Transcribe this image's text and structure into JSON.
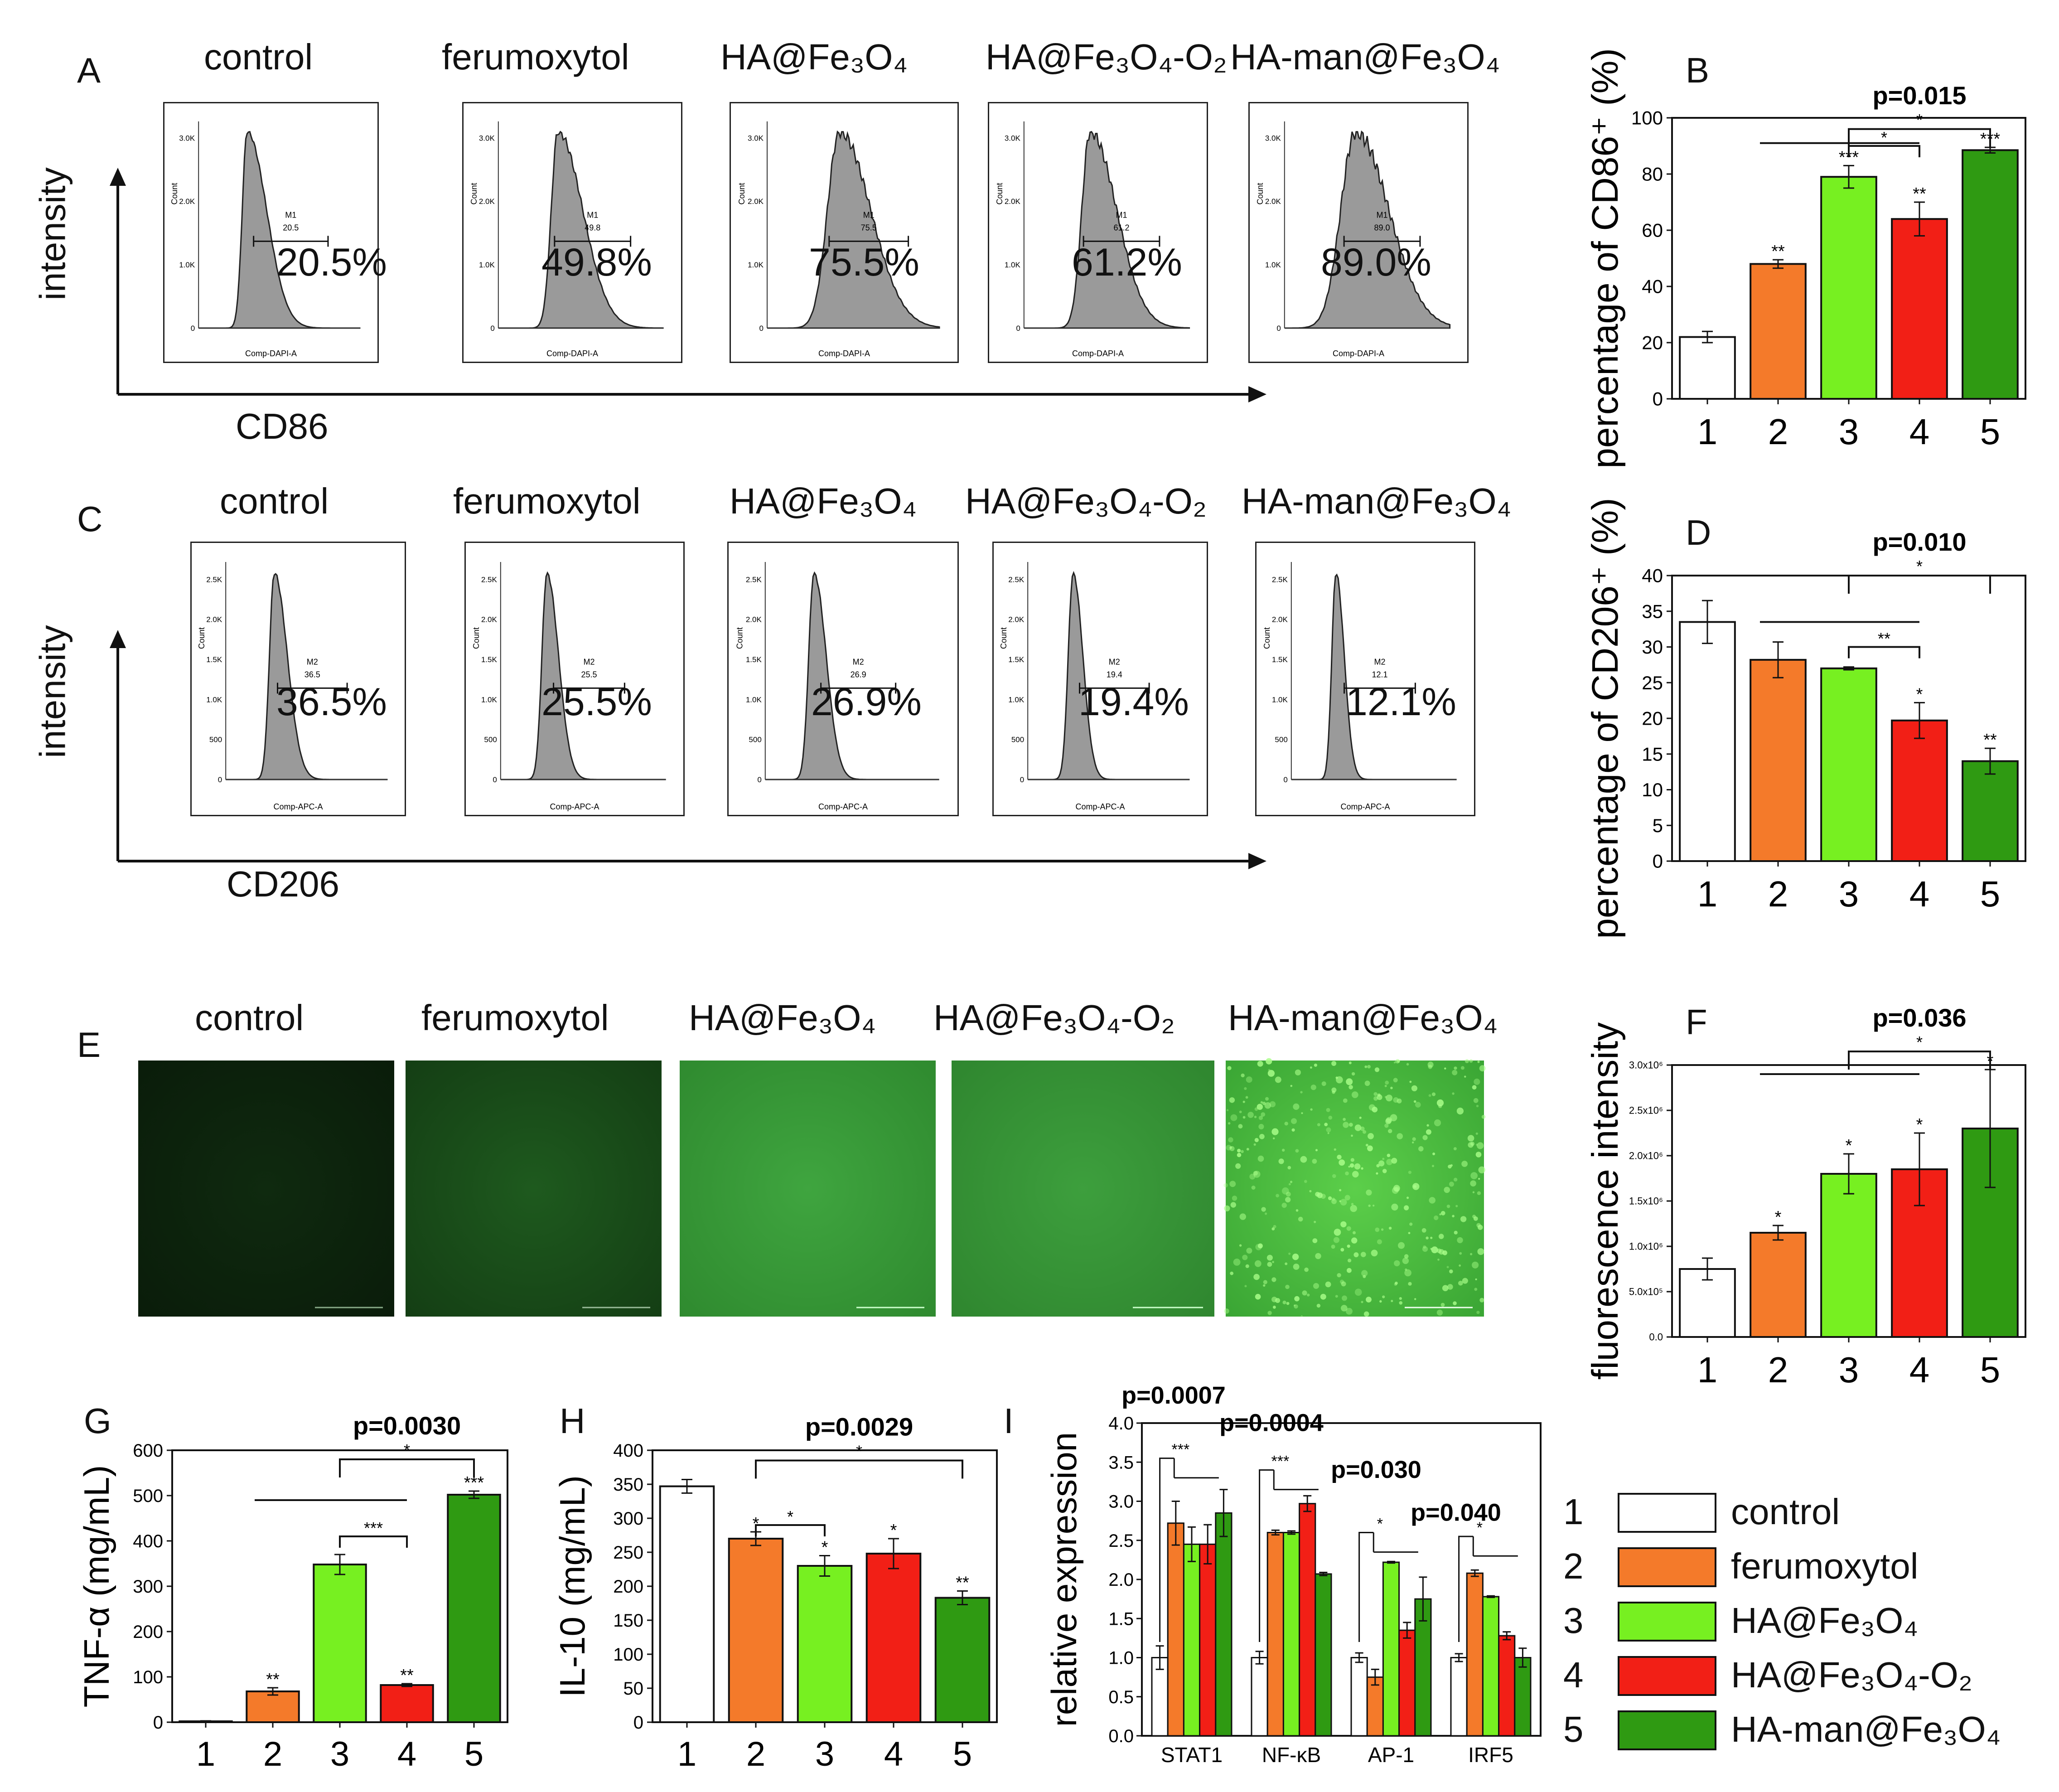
{
  "colors": [
    "#ffffff",
    "#f47a2a",
    "#77f021",
    "#f21f16",
    "#2f9a12"
  ],
  "panel_letters": {
    "A": "A",
    "B": "B",
    "C": "C",
    "D": "D",
    "E": "E",
    "F": "F",
    "G": "G",
    "H": "H",
    "I": "I"
  },
  "conditions": [
    "control",
    "ferumoxytol",
    "HA@Fe₃O₄",
    "HA@Fe₃O₄-O₂",
    "HA-man@Fe₃O₄"
  ],
  "legend": [
    {
      "num": "1",
      "label": "control"
    },
    {
      "num": "2",
      "label": "ferumoxytol"
    },
    {
      "num": "3",
      "label": "HA@Fe₃O₄"
    },
    {
      "num": "4",
      "label": "HA@Fe₃O₄-O₂"
    },
    {
      "num": "5",
      "label": "HA-man@Fe₃O₄"
    }
  ],
  "flow": {
    "cd86": {
      "intensity_label": "intensity",
      "marker_label": "CD86",
      "gate": "M1",
      "axis_caption": "Comp-DAPI-A",
      "percents": [
        "20.5%",
        "49.8%",
        "75.5%",
        "61.2%",
        "89.0%"
      ],
      "gate_values": [
        "20.5",
        "49.8",
        "75.5",
        "61.2",
        "89.0"
      ],
      "y_ticks": [
        "3.0K",
        "2.0K",
        "1.0K",
        "0"
      ],
      "y_caption": "Count"
    },
    "cd206": {
      "intensity_label": "intensity",
      "marker_label": "CD206",
      "gate": "M2",
      "axis_caption": "Comp-APC-A",
      "percents": [
        "36.5%",
        "25.5%",
        "26.9%",
        "19.4%",
        "12.1%"
      ],
      "gate_values": [
        "36.5",
        "25.5",
        "26.9",
        "19.4",
        "12.1"
      ],
      "y_ticks": [
        "2.5K",
        "2.0K",
        "1.5K",
        "1.0K",
        "500",
        "0"
      ],
      "y_caption": "Count"
    }
  },
  "chart_data": [
    {
      "id": "B",
      "type": "bar",
      "categories": [
        "1",
        "2",
        "3",
        "4",
        "5"
      ],
      "values": [
        22,
        48,
        79,
        64,
        88.5
      ],
      "errors": [
        2,
        1.5,
        4,
        6,
        1
      ],
      "ylabel": "percentage of CD86⁺ (%)",
      "ylim": [
        0,
        100
      ],
      "yticks": [
        "0",
        "20",
        "40",
        "60",
        "80",
        "100"
      ],
      "stars": [
        "",
        "**",
        "***",
        "**",
        "***"
      ],
      "pvalue": "p=0.015"
    },
    {
      "id": "D",
      "type": "bar",
      "categories": [
        "1",
        "2",
        "3",
        "4",
        "5"
      ],
      "values": [
        33.5,
        28.2,
        27,
        19.7,
        14
      ],
      "errors": [
        3,
        2.5,
        0.2,
        2.5,
        1.8
      ],
      "ylabel": "percentage of CD206⁺ (%)",
      "ylim": [
        0,
        40
      ],
      "yticks": [
        "0",
        "5",
        "10",
        "15",
        "20",
        "25",
        "30",
        "35",
        "40"
      ],
      "stars": [
        "",
        "",
        "",
        "*",
        "**"
      ],
      "pvalue": "p=0.010"
    },
    {
      "id": "F",
      "type": "bar",
      "categories": [
        "1",
        "2",
        "3",
        "4",
        "5"
      ],
      "values": [
        750000,
        1150000,
        1800000,
        1850000,
        2300000
      ],
      "errors": [
        120000,
        80000,
        220000,
        400000,
        650000
      ],
      "ylabel": "fluorescence intensity",
      "ylim": [
        0,
        3000000
      ],
      "yticks": [
        "0.0",
        "5.0x10⁵",
        "1.0x10⁶",
        "1.5x10⁶",
        "2.0x10⁶",
        "2.5x10⁶",
        "3.0x10⁶"
      ],
      "stars": [
        "",
        "*",
        "*",
        "*",
        "*"
      ],
      "pvalue": "p=0.036"
    },
    {
      "id": "G",
      "type": "bar",
      "categories": [
        "1",
        "2",
        "3",
        "4",
        "5"
      ],
      "values": [
        2,
        68,
        348,
        82,
        502
      ],
      "errors": [
        1,
        8,
        22,
        3,
        8
      ],
      "ylabel": "TNF-α (mg/mL)",
      "ylim": [
        0,
        600
      ],
      "yticks": [
        "0",
        "100",
        "200",
        "300",
        "400",
        "500",
        "600"
      ],
      "stars": [
        "",
        "**",
        "",
        "**",
        "***"
      ],
      "pvalue": "p=0.0030"
    },
    {
      "id": "H",
      "type": "bar",
      "categories": [
        "1",
        "2",
        "3",
        "4",
        "5"
      ],
      "values": [
        347,
        270,
        230,
        248,
        183
      ],
      "errors": [
        10,
        10,
        15,
        22,
        10
      ],
      "ylabel": "IL-10 (mg/mL)",
      "ylim": [
        0,
        400
      ],
      "yticks": [
        "0",
        "50",
        "100",
        "150",
        "200",
        "250",
        "300",
        "350",
        "400"
      ],
      "stars": [
        "",
        "*",
        "*",
        "*",
        "**"
      ],
      "pvalue": "p=0.0029"
    },
    {
      "id": "I",
      "type": "bar",
      "categories": [
        "STAT1",
        "NF-κB",
        "AP-1",
        "IRF5"
      ],
      "series": [
        {
          "name": "1",
          "values": [
            1.0,
            1.0,
            1.0,
            1.0
          ],
          "errors": [
            0.15,
            0.08,
            0.06,
            0.05
          ]
        },
        {
          "name": "2",
          "values": [
            2.72,
            2.6,
            0.75,
            2.08
          ],
          "errors": [
            0.28,
            0.03,
            0.1,
            0.04
          ]
        },
        {
          "name": "3",
          "values": [
            2.45,
            2.6,
            2.22,
            1.78
          ],
          "errors": [
            0.22,
            0.02,
            0.01,
            0.01
          ]
        },
        {
          "name": "4",
          "values": [
            2.45,
            2.97,
            1.35,
            1.28
          ],
          "errors": [
            0.25,
            0.1,
            0.1,
            0.05
          ]
        },
        {
          "name": "5",
          "values": [
            2.85,
            2.07,
            1.75,
            1.0
          ],
          "errors": [
            0.3,
            0.02,
            0.28,
            0.12
          ]
        }
      ],
      "ylabel": "relative expression",
      "ylim": [
        0,
        4
      ],
      "yticks": [
        "0.0",
        "0.5",
        "1.0",
        "1.5",
        "2.0",
        "2.5",
        "3.0",
        "3.5",
        "4.0"
      ],
      "pvalues": [
        "p=0.0007",
        "p=0.0004",
        "p=0.030",
        "p=0.040"
      ],
      "stars": [
        "***",
        "***",
        "*",
        "*"
      ]
    }
  ]
}
